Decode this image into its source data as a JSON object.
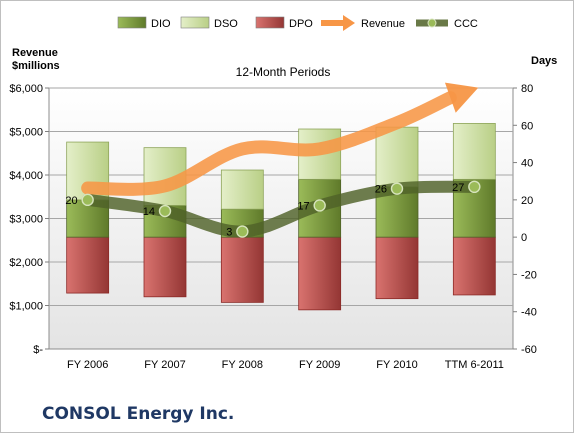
{
  "company": "CONSOL Energy Inc.",
  "chart_data": {
    "type": "bar",
    "title": "12-Month Periods",
    "ylabel_left": "Revenue\n$millions",
    "ylabel_right": "Days",
    "categories": [
      "FY 2006",
      "FY 2007",
      "FY 2008",
      "FY 2009",
      "FY 2010",
      "TTM 6-2011"
    ],
    "left_axis": {
      "min": 0,
      "max": 6000,
      "ticks": [
        0,
        1000,
        2000,
        3000,
        4000,
        5000,
        6000
      ],
      "tick_labels": [
        "$-",
        "$1,000",
        "$2,000",
        "$3,000",
        "$4,000",
        "$5,000",
        "$6,000"
      ]
    },
    "right_axis": {
      "min": -60,
      "max": 80,
      "ticks": [
        -60,
        -40,
        -20,
        0,
        20,
        40,
        60,
        80
      ],
      "tick_labels": [
        "-60",
        "-40",
        "-20",
        "0",
        "20",
        "40",
        "60",
        "80"
      ]
    },
    "grid": true,
    "legend": "top",
    "legend_items": [
      {
        "name": "DIO",
        "kind": "bar",
        "color": "#77933c"
      },
      {
        "name": "DSO",
        "kind": "bar",
        "color": "#c3d69b"
      },
      {
        "name": "DPO",
        "kind": "bar",
        "color": "#c0504d"
      },
      {
        "name": "Revenue",
        "kind": "arrow",
        "color": "#f79646"
      },
      {
        "name": "CCC",
        "kind": "line",
        "color": "#4f6228"
      }
    ],
    "series_days": {
      "DPO": [
        -30,
        -32,
        -35,
        -39,
        -33,
        -31
      ],
      "DIO": [
        20,
        17,
        15,
        31,
        27,
        31
      ],
      "DSO": [
        31,
        31,
        21,
        27,
        32,
        30
      ],
      "CCC": [
        20,
        14,
        3,
        17,
        26,
        27
      ]
    },
    "ccc_labels": [
      "20",
      "14",
      "3",
      "17",
      "26",
      "27"
    ],
    "revenue": [
      3700,
      3750,
      4600,
      4600,
      5200,
      6100
    ]
  }
}
